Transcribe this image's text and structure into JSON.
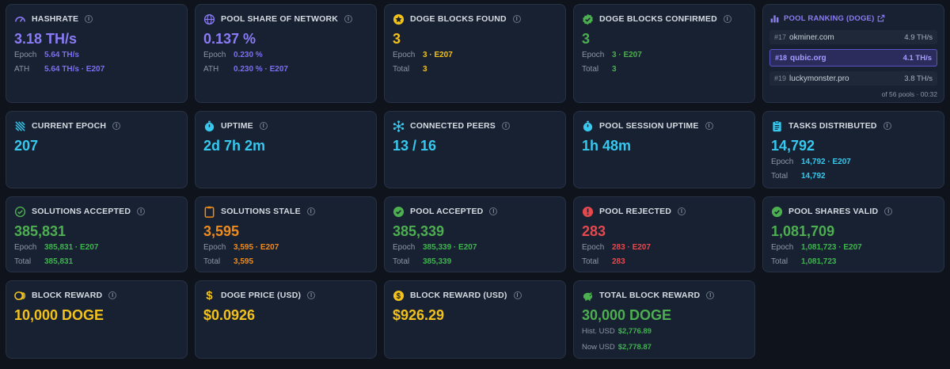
{
  "cards": {
    "hashrate": {
      "title": "HASHRATE",
      "value": "3.18 TH/s",
      "epoch_label": "Epoch",
      "epoch_value": "5.64 TH/s",
      "ath_label": "ATH",
      "ath_value": "5.64 TH/s · E207"
    },
    "pool_share": {
      "title": "POOL SHARE OF NETWORK",
      "value": "0.137 %",
      "epoch_label": "Epoch",
      "epoch_value": "0.230 %",
      "ath_label": "ATH",
      "ath_value": "0.230 % · E207"
    },
    "doge_blocks_found": {
      "title": "DOGE BLOCKS FOUND",
      "value": "3",
      "epoch_label": "Epoch",
      "epoch_value": "3 · E207",
      "total_label": "Total",
      "total_value": "3"
    },
    "doge_blocks_confirmed": {
      "title": "DOGE BLOCKS CONFIRMED",
      "value": "3",
      "epoch_label": "Epoch",
      "epoch_value": "3 · E207",
      "total_label": "Total",
      "total_value": "3"
    },
    "current_epoch": {
      "title": "CURRENT EPOCH",
      "value": "207"
    },
    "uptime": {
      "title": "UPTIME",
      "value": "2d 7h 2m"
    },
    "connected_peers": {
      "title": "CONNECTED PEERS",
      "value": "13 / 16"
    },
    "pool_session_uptime": {
      "title": "POOL SESSION UPTIME",
      "value": "1h 48m"
    },
    "tasks_distributed": {
      "title": "TASKS DISTRIBUTED",
      "value": "14,792",
      "epoch_label": "Epoch",
      "epoch_value": "14,792 · E207",
      "total_label": "Total",
      "total_value": "14,792"
    },
    "solutions_accepted": {
      "title": "SOLUTIONS ACCEPTED",
      "value": "385,831",
      "epoch_label": "Epoch",
      "epoch_value": "385,831 · E207",
      "total_label": "Total",
      "total_value": "385,831"
    },
    "solutions_stale": {
      "title": "SOLUTIONS STALE",
      "value": "3,595",
      "epoch_label": "Epoch",
      "epoch_value": "3,595 · E207",
      "total_label": "Total",
      "total_value": "3,595"
    },
    "pool_accepted": {
      "title": "POOL ACCEPTED",
      "value": "385,339",
      "epoch_label": "Epoch",
      "epoch_value": "385,339 · E207",
      "total_label": "Total",
      "total_value": "385,339"
    },
    "pool_rejected": {
      "title": "POOL REJECTED",
      "value": "283",
      "epoch_label": "Epoch",
      "epoch_value": "283 · E207",
      "total_label": "Total",
      "total_value": "283"
    },
    "pool_shares_valid": {
      "title": "POOL SHARES VALID",
      "value": "1,081,709",
      "epoch_label": "Epoch",
      "epoch_value": "1,081,723 · E207",
      "total_label": "Total",
      "total_value": "1,081,723"
    },
    "block_reward": {
      "title": "BLOCK REWARD",
      "value": "10,000 DOGE"
    },
    "doge_price": {
      "title": "DOGE PRICE (USD)",
      "value": "$0.0926"
    },
    "block_reward_usd": {
      "title": "BLOCK REWARD (USD)",
      "value": "$926.29"
    },
    "total_block_reward": {
      "title": "TOTAL BLOCK REWARD",
      "value": "30,000 DOGE",
      "hist_label": "Hist. USD",
      "hist_value": "$2,776.89",
      "now_label": "Now USD",
      "now_value": "$2,778.87"
    }
  },
  "ranking": {
    "title": "POOL RANKING (DOGE)",
    "rows": [
      {
        "pos": "#17",
        "name": "okminer.com",
        "hashrate": "4.9 TH/s"
      },
      {
        "pos": "#18",
        "name": "qubic.org",
        "hashrate": "4.1 TH/s"
      },
      {
        "pos": "#19",
        "name": "luckymonster.pro",
        "hashrate": "3.8 TH/s"
      }
    ],
    "footer": "of 56 pools · 00:32"
  },
  "icons": {
    "info": "i"
  },
  "colors": {
    "background": "#0f141c",
    "card": "#182131",
    "purple": "#8b7cf6",
    "cyan": "#36c8ee",
    "yellow": "#f2c21b",
    "green": "#4caf50",
    "orange": "#ef8a1d",
    "red": "#e5484d"
  }
}
